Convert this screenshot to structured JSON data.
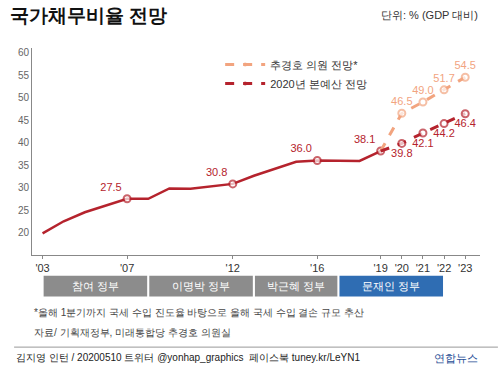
{
  "chart_data": {
    "type": "line",
    "title": "국가채무비율 전망",
    "unit_label": "단위: % (GDP 대비)",
    "x": [
      2003,
      2004,
      2005,
      2006,
      2007,
      2008,
      2009,
      2010,
      2011,
      2012,
      2013,
      2014,
      2015,
      2016,
      2017,
      2018,
      2019,
      2020,
      2021,
      2022,
      2023
    ],
    "xlim": [
      2002.5,
      2023.7
    ],
    "xticks": [
      {
        "value": 2003,
        "label": "'03"
      },
      {
        "value": 2007,
        "label": "'07"
      },
      {
        "value": 2012,
        "label": "'12"
      },
      {
        "value": 2016,
        "label": "'16"
      },
      {
        "value": 2019,
        "label": "'19"
      },
      {
        "value": 2020,
        "label": "'20"
      },
      {
        "value": 2021,
        "label": "'21"
      },
      {
        "value": 2022,
        "label": "'22"
      },
      {
        "value": 2023,
        "label": "'23"
      }
    ],
    "ylim": [
      15,
      61
    ],
    "yticks": [
      20,
      25,
      30,
      35,
      40,
      45,
      50,
      55,
      60
    ],
    "grid": false,
    "legend": "top",
    "data_labels": true,
    "series": [
      {
        "color": "#b5232d",
        "line_style": "solid",
        "marker": "circle",
        "values": [
          19.8,
          22.5,
          24.5,
          26.0,
          27.5,
          27.5,
          29.8,
          29.7,
          30.3,
          30.8,
          32.6,
          34.1,
          35.7,
          36.0,
          36.0,
          35.9,
          38.1,
          null,
          null,
          null,
          null
        ],
        "value_labels": [
          null,
          null,
          null,
          null,
          "27.5",
          null,
          null,
          null,
          null,
          "30.8",
          null,
          null,
          null,
          "36.0",
          null,
          null,
          "38.1",
          null,
          null,
          null,
          null
        ]
      },
      {
        "name": "추경호 의원 전망*",
        "color": "#f2a47f",
        "line_style": "dashed",
        "marker": "circle",
        "values": [
          null,
          null,
          null,
          null,
          null,
          null,
          null,
          null,
          null,
          null,
          null,
          null,
          null,
          null,
          null,
          null,
          38.1,
          46.5,
          49.0,
          51.7,
          54.5
        ],
        "value_labels": [
          null,
          null,
          null,
          null,
          null,
          null,
          null,
          null,
          null,
          null,
          null,
          null,
          null,
          null,
          null,
          null,
          null,
          "46.5",
          "49.0",
          "51.7",
          "54.5"
        ]
      },
      {
        "name": "2020년 본예산 전망",
        "color": "#b5232d",
        "line_style": "dashed",
        "marker": "circle",
        "values": [
          null,
          null,
          null,
          null,
          null,
          null,
          null,
          null,
          null,
          null,
          null,
          null,
          null,
          null,
          null,
          null,
          38.1,
          39.8,
          42.1,
          44.2,
          46.4
        ],
        "value_labels": [
          null,
          null,
          null,
          null,
          null,
          null,
          null,
          null,
          null,
          null,
          null,
          null,
          null,
          null,
          null,
          null,
          null,
          "39.8",
          "42.1",
          "44.2",
          "46.4"
        ]
      }
    ],
    "periods": [
      {
        "label": "참여 정부",
        "start": 2003,
        "end": 2008,
        "color": "#8c8c8c"
      },
      {
        "label": "이명박 정부",
        "start": 2008,
        "end": 2013,
        "color": "#8c8c8c"
      },
      {
        "label": "박근혜 정부",
        "start": 2013,
        "end": 2017,
        "color": "#8c8c8c"
      },
      {
        "label": "문재인 정부",
        "start": 2017,
        "end": 2022,
        "color": "#2f6db3"
      }
    ],
    "note": "*올해 1분기까지 국세 수입 진도율 바탕으로 올해 국세 수입 결손 규모 추산",
    "source": "자료/ 기획재정부, 미래통합당 추경호 의원실",
    "credit": "김지영 인턴 / 20200510 트위터 @yonhap_graphics  페이스북 tuney.kr/LeYN1",
    "logo": "연합뉴스"
  }
}
